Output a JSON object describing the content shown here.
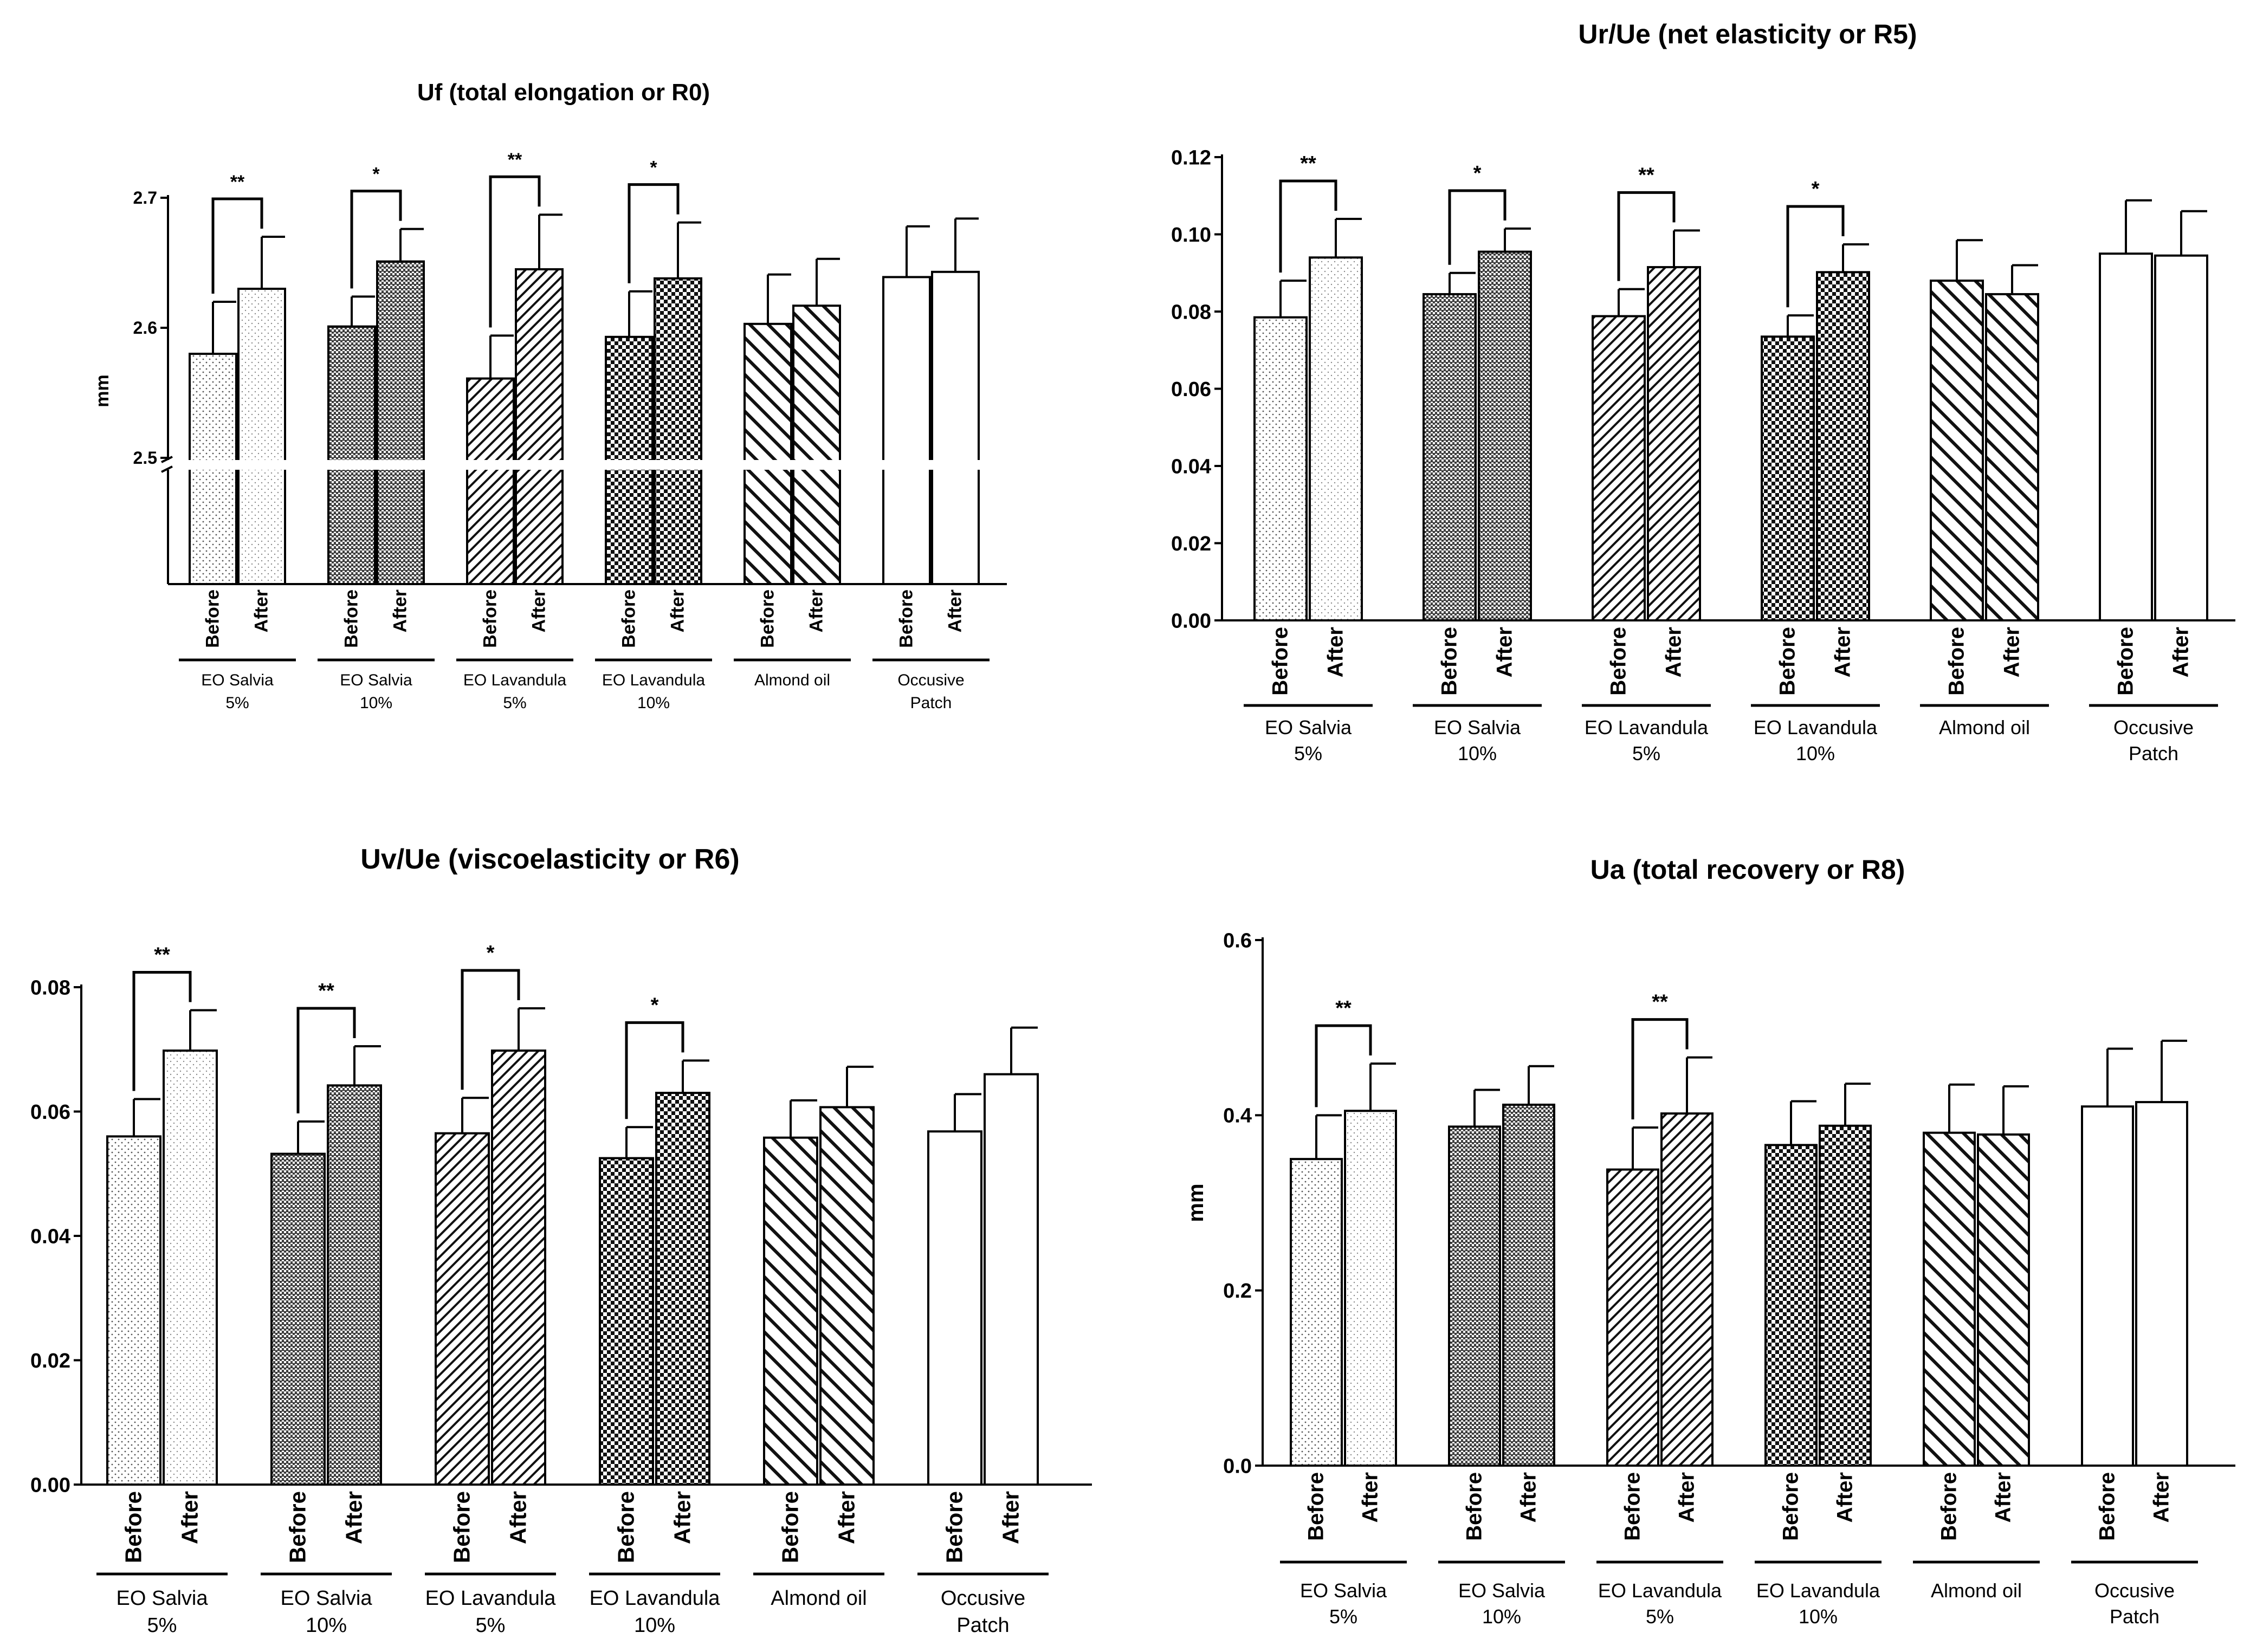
{
  "figure": {
    "bar_labels": [
      "Before",
      "After"
    ],
    "groups": [
      "EO Salvia 5%",
      "EO Salvia 10%",
      "EO Lavandula 5%",
      "EO Lavandula 10%",
      "Almond oil",
      "Occusive Patch"
    ]
  },
  "chart_data": [
    {
      "type": "bar",
      "title": "Uf (total elongation or R0)",
      "xlabel": "",
      "ylabel": "mm",
      "ylim": [
        2.5,
        2.7
      ],
      "axis_break": 2.5,
      "yticks": [
        "2.5",
        "2.6",
        "2.7"
      ],
      "categories": [
        [
          "EO Salvia",
          "5%"
        ],
        [
          "EO Salvia",
          "10%"
        ],
        [
          "EO Lavandula",
          "5%"
        ],
        [
          "EO Lavandula",
          "10%"
        ],
        [
          "Almond oil"
        ],
        [
          "Occusive",
          "Patch"
        ]
      ],
      "series": [
        {
          "name": "Before",
          "values": [
            2.58,
            2.601,
            2.561,
            2.593,
            2.603,
            2.639
          ],
          "errors": [
            0.04,
            0.023,
            0.033,
            0.035,
            0.038,
            0.039
          ]
        },
        {
          "name": "After",
          "values": [
            2.63,
            2.651,
            2.645,
            2.638,
            2.617,
            2.643
          ],
          "errors": [
            0.04,
            0.025,
            0.042,
            0.043,
            0.036,
            0.041
          ]
        }
      ],
      "significance": [
        "**",
        "*",
        "**",
        "*",
        "",
        ""
      ]
    },
    {
      "type": "bar",
      "title": "Ur/Ue (net elasticity or R5)",
      "xlabel": "",
      "ylabel": "",
      "ylim": [
        0,
        0.12
      ],
      "yticks": [
        "0.00",
        "0.02",
        "0.04",
        "0.06",
        "0.08",
        "0.10",
        "0.12"
      ],
      "categories": [
        [
          "EO Salvia",
          "5%"
        ],
        [
          "EO Salvia",
          "10%"
        ],
        [
          "EO Lavandula",
          "5%"
        ],
        [
          "EO Lavandula",
          "10%"
        ],
        [
          "Almond oil"
        ],
        [
          "Occusive",
          "Patch"
        ]
      ],
      "series": [
        {
          "name": "Before",
          "values": [
            0.0785,
            0.0845,
            0.0788,
            0.0735,
            0.088,
            0.095
          ],
          "errors": [
            0.0095,
            0.0055,
            0.007,
            0.0055,
            0.0105,
            0.0138
          ]
        },
        {
          "name": "After",
          "values": [
            0.094,
            0.0955,
            0.0915,
            0.0902,
            0.0845,
            0.0945
          ],
          "errors": [
            0.01,
            0.006,
            0.0095,
            0.0072,
            0.0075,
            0.0115
          ]
        }
      ],
      "significance": [
        "**",
        "*",
        "**",
        "*",
        "",
        ""
      ]
    },
    {
      "type": "bar",
      "title": "Uv/Ue (viscoelasticity or R6)",
      "xlabel": "",
      "ylabel": "",
      "ylim": [
        0,
        0.08
      ],
      "yticks": [
        "0.00",
        "0.02",
        "0.04",
        "0.06",
        "0.08"
      ],
      "categories": [
        [
          "EO Salvia",
          "5%"
        ],
        [
          "EO Salvia",
          "10%"
        ],
        [
          "EO Lavandula",
          "5%"
        ],
        [
          "EO Lavandula",
          "10%"
        ],
        [
          "Almond oil"
        ],
        [
          "Occusive",
          "Patch"
        ]
      ],
      "series": [
        {
          "name": "Before",
          "values": [
            0.056,
            0.0532,
            0.0565,
            0.0525,
            0.0558,
            0.0568
          ],
          "errors": [
            0.006,
            0.0052,
            0.0057,
            0.005,
            0.006,
            0.006
          ]
        },
        {
          "name": "After",
          "values": [
            0.0698,
            0.0642,
            0.0698,
            0.063,
            0.0607,
            0.066
          ],
          "errors": [
            0.0065,
            0.0063,
            0.0068,
            0.0052,
            0.0065,
            0.0075
          ]
        }
      ],
      "significance": [
        "**",
        "**",
        "*",
        "*",
        "",
        ""
      ]
    },
    {
      "type": "bar",
      "title": "Ua (total recovery or R8)",
      "xlabel": "",
      "ylabel": "mm",
      "ylim": [
        0,
        0.6
      ],
      "yticks": [
        "0.0",
        "0.2",
        "0.4",
        "0.6"
      ],
      "categories": [
        [
          "EO Salvia",
          "5%"
        ],
        [
          "EO Salvia",
          "10%"
        ],
        [
          "EO Lavandula",
          "5%"
        ],
        [
          "EO Lavandula",
          "10%"
        ],
        [
          "Almond oil"
        ],
        [
          "Occusive",
          "Patch"
        ]
      ],
      "series": [
        {
          "name": "Before",
          "values": [
            0.35,
            0.387,
            0.338,
            0.366,
            0.38,
            0.41
          ],
          "errors": [
            0.05,
            0.042,
            0.048,
            0.05,
            0.055,
            0.066
          ]
        },
        {
          "name": "After",
          "values": [
            0.405,
            0.412,
            0.402,
            0.388,
            0.378,
            0.415
          ],
          "errors": [
            0.054,
            0.044,
            0.064,
            0.048,
            0.055,
            0.07
          ]
        }
      ],
      "significance": [
        "**",
        "",
        "**",
        "",
        "",
        ""
      ]
    }
  ]
}
